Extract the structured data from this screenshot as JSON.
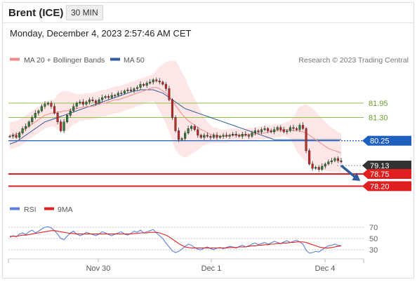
{
  "header": {
    "instrument": "Brent (ICE)",
    "timeframe": "30 MIN",
    "timestamp": "Monday, December 4, 2023 2:57:46 AM CET"
  },
  "legend": {
    "ma20": "MA 20 + Bollinger Bands",
    "ma50": "MA 50",
    "credit": "Research © 2023 Trading Central",
    "rsi": "RSI",
    "nine_ma": "9MA"
  },
  "colors": {
    "candle_up": "#2e7d32",
    "candle_down": "#c62828",
    "ma20": "#f08a8a",
    "bollinger_fill": "#fde2e2",
    "ma50": "#2f5b9e",
    "level_green": "#8bc34a",
    "level_blue": "#1f5fbf",
    "level_red": "#e02020",
    "price_label": "#333333",
    "arrow": "#2f5b9e",
    "rsi": "#5b7fdb",
    "nine_ma_line": "#e02020"
  },
  "chart_data": [
    {
      "type": "line",
      "name": "price",
      "x_ticks": [
        "Nov 30",
        "Dec 1",
        "Dec 4"
      ],
      "ylim": [
        77.8,
        83.5
      ],
      "close": [
        80.45,
        80.5,
        80.4,
        80.6,
        80.8,
        80.9,
        81.1,
        81.3,
        81.5,
        81.6,
        81.8,
        81.9,
        81.95,
        81.8,
        81.5,
        81.1,
        80.7,
        81.1,
        81.4,
        81.6,
        81.8,
        81.95,
        82.0,
        81.9,
        82.0,
        82.1,
        82.05,
        81.95,
        82.1,
        82.2,
        82.25,
        82.2,
        82.3,
        82.3,
        82.4,
        82.4,
        82.5,
        82.55,
        82.5,
        82.6,
        82.65,
        82.8,
        82.75,
        82.85,
        82.9,
        83.0,
        82.95,
        82.9,
        82.8,
        82.6,
        82.1,
        81.3,
        80.7,
        80.3,
        80.35,
        80.6,
        80.8,
        80.9,
        80.75,
        80.5,
        80.4,
        80.5,
        80.45,
        80.4,
        80.5,
        80.4,
        80.45,
        80.5,
        80.45,
        80.5,
        80.55,
        80.5,
        80.45,
        80.55,
        80.5,
        80.45,
        80.6,
        80.7,
        80.65,
        80.75,
        80.8,
        80.7,
        80.65,
        80.75,
        80.85,
        80.75,
        80.65,
        80.7,
        80.85,
        80.8,
        80.75,
        80.95,
        80.8,
        79.8,
        79.2,
        79.0,
        79.05,
        78.95,
        79.1,
        79.2,
        79.3,
        79.35,
        79.45,
        79.35,
        79.3
      ],
      "ma20": [
        80.5,
        80.5,
        80.55,
        80.6,
        80.7,
        80.8,
        80.9,
        81.0,
        81.1,
        81.2,
        81.3,
        81.4,
        81.45,
        81.5,
        81.5,
        81.55,
        81.55,
        81.6,
        81.6,
        81.65,
        81.7,
        81.7,
        81.75,
        81.75,
        81.8,
        81.8,
        81.8,
        81.85,
        81.9,
        81.95,
        81.95,
        82.0,
        82.05,
        82.1,
        82.1,
        82.15,
        82.2,
        82.25,
        82.3,
        82.35,
        82.4,
        82.45,
        82.5,
        82.55,
        82.6,
        82.65,
        82.65,
        82.6,
        82.5,
        82.4,
        82.25,
        82.05,
        81.85,
        81.65,
        81.45,
        81.3,
        81.15,
        81.05,
        80.95,
        80.85,
        80.75,
        80.7,
        80.6,
        80.55,
        80.5,
        80.5,
        80.45,
        80.45,
        80.45,
        80.5,
        80.5,
        80.5,
        80.5,
        80.5,
        80.5,
        80.55,
        80.55,
        80.55,
        80.6,
        80.6,
        80.6,
        80.65,
        80.65,
        80.7,
        80.7,
        80.7,
        80.75,
        80.75,
        80.75,
        80.7,
        80.7,
        80.7,
        80.65,
        80.6,
        80.5,
        80.4,
        80.3,
        80.2,
        80.1,
        80.0,
        79.9,
        79.85,
        79.8,
        79.75,
        79.7
      ],
      "ma50": [
        80.1,
        80.15,
        80.2,
        80.3,
        80.4,
        80.5,
        80.6,
        80.7,
        80.8,
        80.9,
        81.0,
        81.1,
        81.15,
        81.2,
        81.25,
        81.3,
        81.35,
        81.4,
        81.45,
        81.5,
        81.55,
        81.6,
        81.65,
        81.7,
        81.75,
        81.8,
        81.85,
        81.9,
        81.95,
        82.0,
        82.05,
        82.1,
        82.15,
        82.2,
        82.25,
        82.3,
        82.35,
        82.4,
        82.45,
        82.5,
        82.5,
        82.55,
        82.55,
        82.55,
        82.55,
        82.55,
        82.5,
        82.45,
        82.4,
        82.3,
        82.2,
        82.1,
        82.0,
        81.9,
        81.8,
        81.7,
        81.65,
        81.6,
        81.55,
        81.5,
        81.45,
        81.4,
        81.35,
        81.3,
        81.25,
        81.2,
        81.15,
        81.1,
        81.05,
        81.0,
        80.95,
        80.9,
        80.85,
        80.8,
        80.75,
        80.7,
        80.65,
        80.6,
        80.55,
        80.5,
        80.45,
        80.4,
        80.35,
        80.3,
        80.3,
        80.3,
        80.3,
        80.3,
        80.3,
        80.3,
        80.3,
        80.3,
        80.3,
        80.3,
        80.3,
        80.3,
        80.3,
        80.3,
        80.3,
        80.3,
        80.3,
        80.3,
        80.3,
        80.3,
        80.3
      ],
      "band_width": [
        0.6,
        0.6,
        0.6,
        0.6,
        0.6,
        0.6,
        0.6,
        0.6,
        0.6,
        0.6,
        0.6,
        0.6,
        0.6,
        0.6,
        0.6,
        0.8,
        0.9,
        0.9,
        0.9,
        0.8,
        0.7,
        0.65,
        0.6,
        0.6,
        0.6,
        0.6,
        0.6,
        0.6,
        0.6,
        0.6,
        0.6,
        0.6,
        0.6,
        0.6,
        0.6,
        0.6,
        0.6,
        0.6,
        0.6,
        0.6,
        0.6,
        0.6,
        0.6,
        0.6,
        0.6,
        0.6,
        0.8,
        1.0,
        1.2,
        1.4,
        1.6,
        1.8,
        2.0,
        2.0,
        1.9,
        1.8,
        1.6,
        1.4,
        1.2,
        1.0,
        0.8,
        0.65,
        0.5,
        0.4,
        0.35,
        0.35,
        0.3,
        0.3,
        0.3,
        0.3,
        0.3,
        0.3,
        0.3,
        0.3,
        0.3,
        0.3,
        0.3,
        0.3,
        0.3,
        0.3,
        0.3,
        0.3,
        0.3,
        0.3,
        0.3,
        0.3,
        0.3,
        0.35,
        0.4,
        0.6,
        0.9,
        1.1,
        1.2,
        1.3,
        1.3,
        1.3,
        1.25,
        1.2,
        1.15,
        1.1,
        1.05,
        1.0,
        0.95,
        0.9,
        0.9
      ],
      "levels": [
        {
          "value": 81.95,
          "label": "81.95",
          "color": "green"
        },
        {
          "value": 81.3,
          "label": "81.30",
          "color": "green"
        },
        {
          "value": 80.25,
          "label": "80.25",
          "color": "blue"
        },
        {
          "value": 79.13,
          "label": "79.13",
          "color": "price"
        },
        {
          "value": 78.75,
          "label": "78.75",
          "color": "red"
        },
        {
          "value": 78.2,
          "label": "78.20",
          "color": "red"
        }
      ],
      "arrow": {
        "from": [
          104,
          79.13
        ],
        "to": [
          110,
          78.5
        ]
      }
    },
    {
      "type": "line",
      "name": "rsi",
      "y_ticks": [
        70,
        50,
        30
      ],
      "ylim": [
        15,
        85
      ],
      "rsi": [
        52,
        55,
        53,
        58,
        60,
        57,
        62,
        65,
        60,
        63,
        67,
        70,
        71,
        69,
        64,
        58,
        50,
        48,
        54,
        60,
        63,
        58,
        55,
        57,
        61,
        59,
        57,
        55,
        58,
        62,
        60,
        57,
        55,
        58,
        60,
        62,
        58,
        56,
        59,
        63,
        61,
        65,
        60,
        62,
        64,
        66,
        60,
        55,
        50,
        42,
        35,
        28,
        25,
        27,
        31,
        36,
        40,
        38,
        34,
        31,
        30,
        33,
        35,
        32,
        30,
        33,
        34,
        32,
        34,
        36,
        35,
        33,
        36,
        38,
        35,
        37,
        40,
        42,
        39,
        41,
        43,
        40,
        42,
        45,
        43,
        41,
        44,
        46,
        43,
        45,
        47,
        44,
        40,
        29,
        24,
        25,
        27,
        26,
        30,
        34,
        37,
        38,
        40,
        38,
        37
      ],
      "nine_ma": [
        54,
        54,
        54,
        55,
        56,
        56,
        57,
        58,
        59,
        60,
        61,
        62,
        63,
        64,
        64,
        63,
        62,
        61,
        60,
        59,
        59,
        58,
        58,
        58,
        58,
        58,
        58,
        58,
        58,
        58,
        58,
        58,
        58,
        58,
        58,
        58,
        58,
        58,
        58,
        59,
        59,
        60,
        60,
        60,
        61,
        61,
        61,
        60,
        58,
        56,
        53,
        49,
        45,
        41,
        38,
        35,
        34,
        33,
        33,
        33,
        33,
        33,
        33,
        33,
        33,
        33,
        33,
        33,
        33,
        34,
        34,
        34,
        35,
        35,
        35,
        36,
        37,
        37,
        38,
        38,
        39,
        39,
        40,
        40,
        41,
        41,
        42,
        42,
        43,
        43,
        44,
        44,
        44,
        43,
        41,
        39,
        37,
        35,
        34,
        33,
        33,
        34,
        35,
        36,
        37
      ]
    }
  ]
}
